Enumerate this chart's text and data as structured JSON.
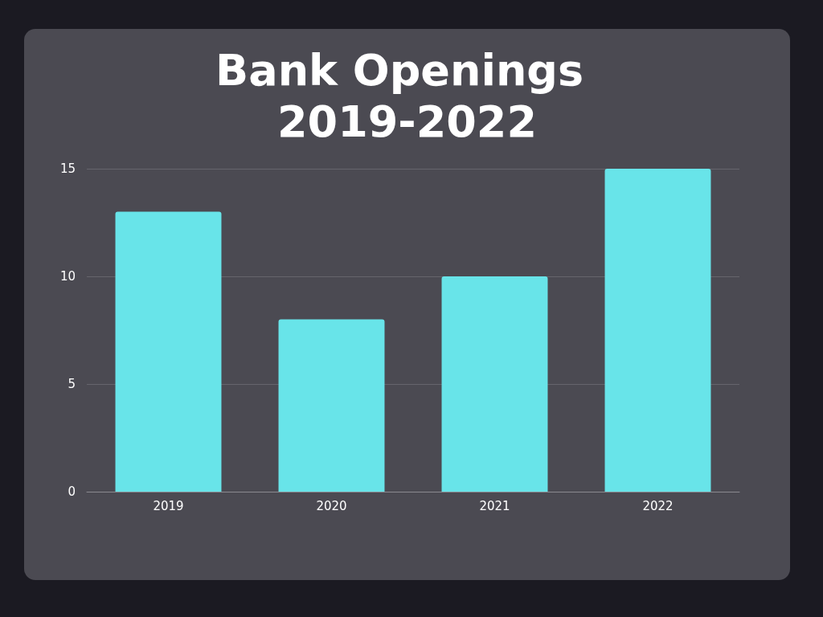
{
  "chart_data": {
    "type": "bar",
    "title": "Bank Openings 2019-2022",
    "categories": [
      "2019",
      "2020",
      "2021",
      "2022"
    ],
    "values": [
      13,
      8,
      10,
      15
    ],
    "color": "#68e4e9",
    "ylim": [
      0,
      15
    ],
    "yticks": [
      0,
      5,
      10,
      15
    ],
    "grid": "y"
  }
}
